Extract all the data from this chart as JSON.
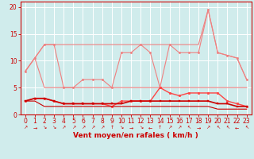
{
  "x": [
    0,
    1,
    2,
    3,
    4,
    5,
    6,
    7,
    8,
    9,
    10,
    11,
    12,
    13,
    14,
    15,
    16,
    17,
    18,
    19,
    20,
    21,
    22,
    23
  ],
  "series": [
    {
      "name": "upper_envelope",
      "color": "#f08080",
      "linewidth": 0.8,
      "marker": null,
      "markersize": 0,
      "values": [
        8,
        10.5,
        13,
        13,
        13,
        13,
        13,
        13,
        13,
        13,
        13,
        13,
        13,
        13,
        13,
        13,
        13,
        13,
        13,
        19.5,
        11.5,
        11,
        10.5,
        6.5
      ]
    },
    {
      "name": "lower_envelope",
      "color": "#f08080",
      "linewidth": 0.8,
      "marker": null,
      "markersize": 0,
      "values": [
        8,
        10.5,
        5,
        5,
        5,
        5,
        5,
        5,
        5,
        5,
        5,
        5,
        5,
        5,
        5,
        5,
        5,
        5,
        5,
        5,
        5,
        5,
        5,
        5
      ]
    },
    {
      "name": "max_gust",
      "color": "#f08080",
      "linewidth": 0.8,
      "marker": "o",
      "markersize": 1.8,
      "values": [
        8,
        10.5,
        13,
        13,
        5,
        5,
        6.5,
        6.5,
        6.5,
        5,
        11.5,
        11.5,
        13,
        11.5,
        5,
        13,
        11.5,
        11.5,
        11.5,
        19.5,
        11.5,
        11,
        10.5,
        6.5
      ]
    },
    {
      "name": "mean_wind",
      "color": "#ff4444",
      "linewidth": 1.0,
      "marker": "o",
      "markersize": 2.0,
      "values": [
        2.5,
        3,
        3,
        2.5,
        2,
        2,
        2,
        2,
        2,
        1.5,
        2.5,
        2.5,
        2.5,
        2.5,
        5,
        4,
        3.5,
        4,
        4,
        4,
        4,
        2.5,
        2,
        1.5
      ]
    },
    {
      "name": "mode_wind",
      "color": "#cc0000",
      "linewidth": 1.2,
      "marker": "s",
      "markersize": 2.0,
      "values": [
        2.5,
        3,
        3,
        2.5,
        2,
        2,
        2,
        2,
        2,
        2,
        2,
        2.5,
        2.5,
        2.5,
        2.5,
        2.5,
        2.5,
        2.5,
        2.5,
        2.5,
        2,
        2,
        1.5,
        1.5
      ]
    },
    {
      "name": "min_wind",
      "color": "#cc0000",
      "linewidth": 0.8,
      "marker": null,
      "markersize": 0,
      "values": [
        2.5,
        2.5,
        1.5,
        1.5,
        1.5,
        1.5,
        1.5,
        1.5,
        1.5,
        1.5,
        1.5,
        1.5,
        1.5,
        1.5,
        1.5,
        1.5,
        1.5,
        1.5,
        1.5,
        1.5,
        1.0,
        1.0,
        1.0,
        1.0
      ]
    }
  ],
  "xlabel": "Vent moyen/en rafales ( km/h )",
  "ylim": [
    0,
    21
  ],
  "xlim": [
    -0.5,
    23.5
  ],
  "yticks": [
    0,
    5,
    10,
    15,
    20
  ],
  "xtick_labels": [
    "0",
    "1",
    "2",
    "3",
    "4",
    "5",
    "6",
    "7",
    "8",
    "9",
    "10",
    "11",
    "12",
    "13",
    "14",
    "15",
    "16",
    "17",
    "18",
    "19",
    "20",
    "21",
    "22",
    "23"
  ],
  "bg_color": "#d0ecec",
  "grid_color": "#ffffff",
  "axis_color": "#cc0000",
  "text_color": "#cc0000",
  "label_fontsize": 6.5,
  "tick_fontsize": 5.5,
  "wind_dirs": [
    "↗",
    "→",
    "↘",
    "↘",
    "↗",
    "↗",
    "↗",
    "↗",
    "↗",
    "↑",
    "↘",
    "→",
    "↘",
    "←",
    "↑",
    "↗",
    "↗",
    "↖",
    "→",
    "↗",
    "↖",
    "↖",
    "←",
    "↖"
  ]
}
